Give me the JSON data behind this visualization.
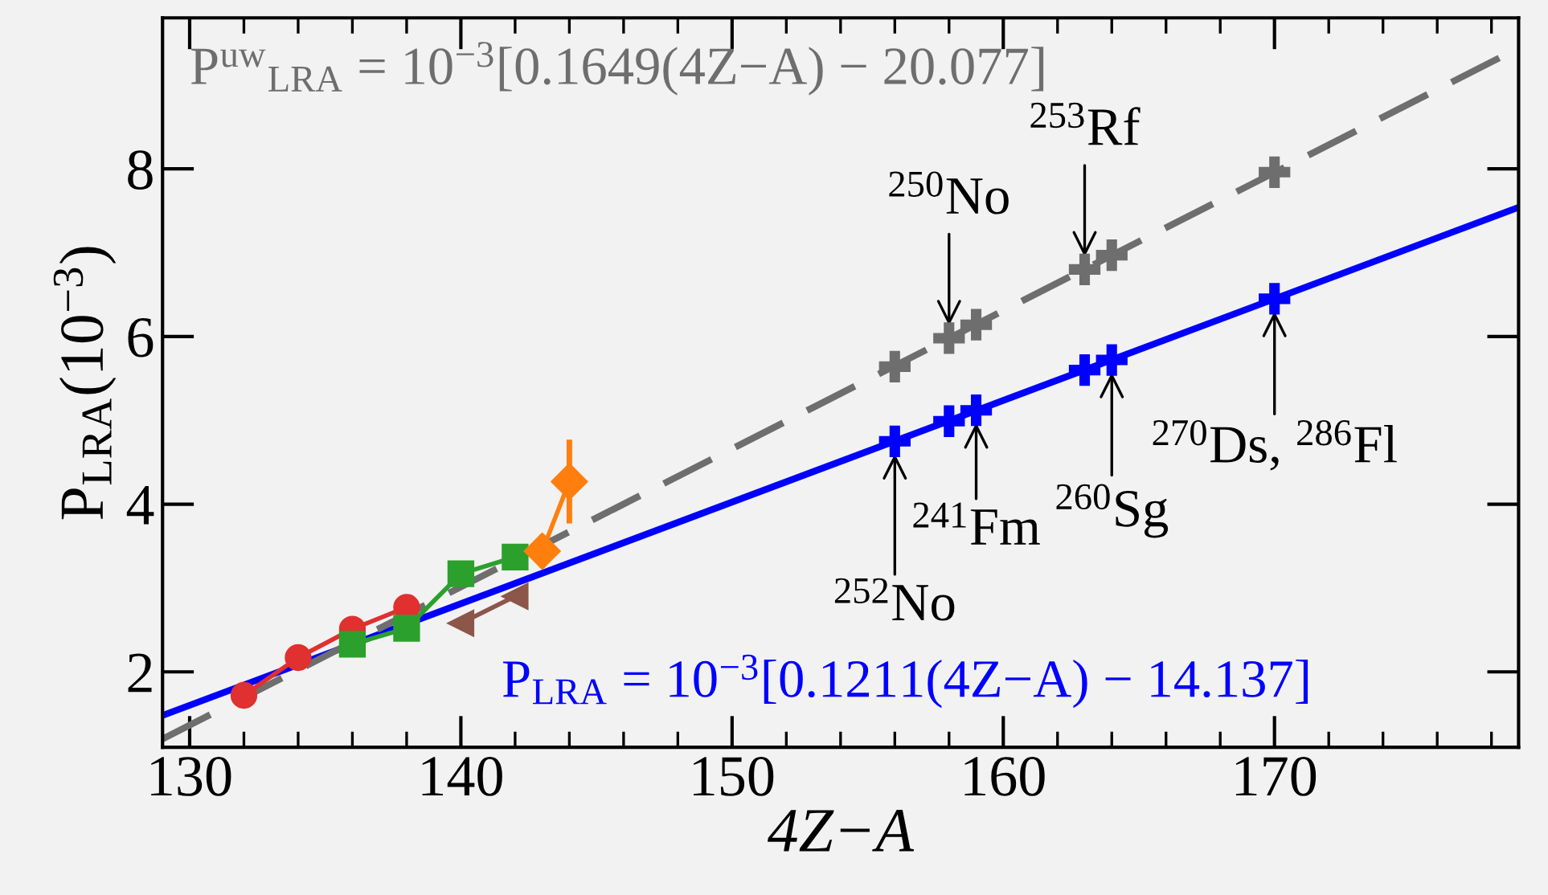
{
  "chart_data": {
    "type": "line",
    "xlabel": "4Z−A",
    "ylabel": "P$_{LRA}$(10$^{−3}$)",
    "xlim": [
      129,
      179
    ],
    "ylim": [
      1.1,
      9.8
    ],
    "xticks": [
      130,
      140,
      150,
      160,
      170
    ],
    "yticks": [
      2,
      4,
      6,
      8
    ],
    "grid": false,
    "legend": false,
    "series": [
      {
        "type": "line",
        "color": "#0000ff",
        "line_style": "solid",
        "marker": "none",
        "x": [
          129,
          179
        ],
        "values": [
          1.48,
          7.54
        ]
      },
      {
        "type": "line",
        "color": "#6e6e6e",
        "line_style": "dashed",
        "marker": "none",
        "x": [
          129,
          179
        ],
        "values": [
          1.2,
          9.44
        ]
      },
      {
        "type": "scatter",
        "color": "#0000ff",
        "marker": "cross",
        "x": [
          156,
          158,
          159,
          163,
          164,
          170
        ],
        "values": [
          4.75,
          4.99,
          5.12,
          5.6,
          5.72,
          6.45
        ]
      },
      {
        "type": "scatter",
        "color": "#6e6e6e",
        "marker": "cross",
        "x": [
          156,
          158,
          159,
          163,
          164,
          170
        ],
        "values": [
          5.64,
          5.98,
          6.14,
          6.8,
          6.97,
          7.96
        ]
      },
      {
        "type": "line",
        "color": "#e03030",
        "line_style": "solid",
        "marker": "circle",
        "x": [
          132,
          134,
          136,
          138
        ],
        "values": [
          1.72,
          2.17,
          2.51,
          2.77
        ]
      },
      {
        "type": "line",
        "color": "#2ca02c",
        "line_style": "solid",
        "marker": "square",
        "x": [
          136,
          138,
          140,
          142
        ],
        "values": [
          2.33,
          2.52,
          3.17,
          3.37
        ]
      },
      {
        "type": "line",
        "color": "#8c564b",
        "line_style": "solid",
        "marker": "triangle",
        "x": [
          140,
          142
        ],
        "values": [
          2.58,
          2.9
        ]
      },
      {
        "type": "line",
        "color": "#ff7f0e",
        "line_style": "solid",
        "marker": "diamond",
        "x": [
          143,
          144
        ],
        "values": [
          3.44,
          4.27
        ],
        "errors": [
          0.2,
          0.5
        ]
      }
    ],
    "annotations": [
      "P$^{uw}$$_{LRA}$ = 10$^{−3}$[0.1649(4Z−A) − 20.077]",
      "P$_{LRA}$ = 10$^{−3}$[0.1211(4Z−A) − 14.137]",
      {
        "text": "$^{250}$No",
        "x": 158,
        "y": 5.98
      },
      {
        "text": "$^{253}$Rf",
        "x": 163,
        "y": 6.8
      },
      {
        "text": "$^{252}$No",
        "x": 156,
        "y": 4.75
      },
      {
        "text": "$^{241}$Fm",
        "x": 159,
        "y": 5.12
      },
      {
        "text": "$^{260}$Sg",
        "x": 164,
        "y": 5.72
      },
      {
        "text": "$^{270}$Ds, $^{286}$Fl",
        "x": 170,
        "y": 6.45
      }
    ]
  }
}
